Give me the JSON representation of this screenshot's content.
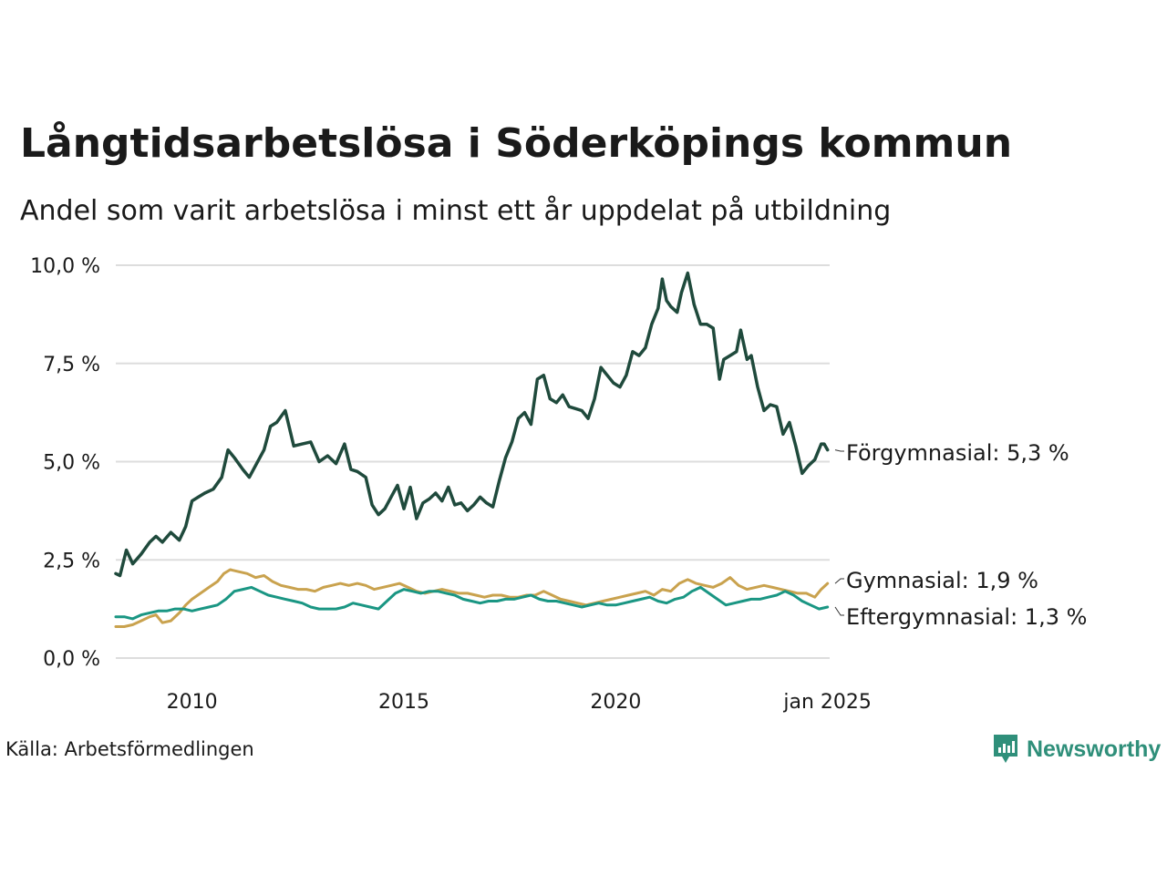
{
  "title": "Långtidsarbetslösa i Söderköpings kommun",
  "subtitle": "Andel som varit arbetslösa i minst ett år uppdelat på utbildning",
  "source": "Källa: Arbetsförmedlingen",
  "brand": "Newsworthy",
  "brand_icon": "newsworthy-logo-icon",
  "colors": {
    "forgymnasial": "#1f4a3c",
    "gymnasial": "#c9a24e",
    "eftergymnasial": "#1a9683",
    "grid": "#dddddd",
    "brand": "#2f8f7a"
  },
  "chart_data": {
    "type": "line",
    "title": "Långtidsarbetslösa i Söderköpings kommun",
    "subtitle": "Andel som varit arbetslösa i minst ett år uppdelat på utbildning",
    "xlabel": "",
    "ylabel": "",
    "xlim": [
      2008.2,
      2025.05
    ],
    "ylim": [
      0,
      10
    ],
    "x_ticks": [
      2010,
      2015,
      2020,
      2025
    ],
    "x_tick_labels": [
      "2010",
      "2015",
      "2020",
      "jan 2025"
    ],
    "y_ticks": [
      0,
      2.5,
      5,
      7.5,
      10
    ],
    "y_tick_labels": [
      "0,0 %",
      "2,5 %",
      "5,0 %",
      "7,5 %",
      "10,0 %"
    ],
    "grid": true,
    "series": [
      {
        "name": "Förgymnasial",
        "end_label": "Förgymnasial: 5,3 %",
        "x": [
          2008.2,
          2008.3,
          2008.45,
          2008.6,
          2008.8,
          2009.0,
          2009.15,
          2009.3,
          2009.5,
          2009.7,
          2009.85,
          2010.0,
          2010.15,
          2010.3,
          2010.5,
          2010.7,
          2010.85,
          2011.0,
          2011.2,
          2011.35,
          2011.5,
          2011.7,
          2011.85,
          2012.0,
          2012.2,
          2012.4,
          2012.6,
          2012.8,
          2013.0,
          2013.2,
          2013.4,
          2013.6,
          2013.75,
          2013.9,
          2014.1,
          2014.25,
          2014.4,
          2014.55,
          2014.7,
          2014.85,
          2015.0,
          2015.15,
          2015.3,
          2015.45,
          2015.6,
          2015.75,
          2015.9,
          2016.05,
          2016.2,
          2016.35,
          2016.5,
          2016.65,
          2016.8,
          2016.95,
          2017.1,
          2017.25,
          2017.4,
          2017.55,
          2017.7,
          2017.85,
          2018.0,
          2018.15,
          2018.3,
          2018.45,
          2018.6,
          2018.75,
          2018.9,
          2019.05,
          2019.2,
          2019.35,
          2019.5,
          2019.65,
          2019.8,
          2019.95,
          2020.1,
          2020.25,
          2020.4,
          2020.55,
          2020.7,
          2020.85,
          2021.0,
          2021.1,
          2021.2,
          2021.3,
          2021.45,
          2021.55,
          2021.7,
          2021.85,
          2022.0,
          2022.15,
          2022.3,
          2022.45,
          2022.55,
          2022.7,
          2022.85,
          2022.95,
          2023.1,
          2023.2,
          2023.35,
          2023.5,
          2023.65,
          2023.8,
          2023.95,
          2024.1,
          2024.25,
          2024.4,
          2024.55,
          2024.7,
          2024.85,
          2024.92,
          2025.0
        ],
        "values": [
          2.15,
          2.1,
          2.75,
          2.4,
          2.65,
          2.95,
          3.1,
          2.95,
          3.2,
          3.0,
          3.35,
          4.0,
          4.1,
          4.2,
          4.3,
          4.6,
          5.3,
          5.1,
          4.8,
          4.6,
          4.9,
          5.3,
          5.9,
          6.0,
          6.3,
          5.4,
          5.45,
          5.5,
          5.0,
          5.15,
          4.95,
          5.45,
          4.8,
          4.75,
          4.6,
          3.9,
          3.65,
          3.8,
          4.1,
          4.4,
          3.8,
          4.35,
          3.55,
          3.95,
          4.05,
          4.2,
          4.0,
          4.35,
          3.9,
          3.95,
          3.75,
          3.9,
          4.1,
          3.95,
          3.85,
          4.5,
          5.1,
          5.5,
          6.1,
          6.25,
          5.95,
          7.1,
          7.2,
          6.6,
          6.5,
          6.7,
          6.4,
          6.35,
          6.3,
          6.1,
          6.6,
          7.4,
          7.2,
          7.0,
          6.9,
          7.2,
          7.8,
          7.7,
          7.9,
          8.5,
          8.9,
          9.65,
          9.1,
          8.95,
          8.8,
          9.3,
          9.8,
          9.0,
          8.5,
          8.5,
          8.4,
          7.1,
          7.6,
          7.7,
          7.8,
          8.35,
          7.6,
          7.7,
          6.9,
          6.3,
          6.45,
          6.4,
          5.7,
          6.0,
          5.4,
          4.7,
          4.9,
          5.05,
          5.45,
          5.45,
          5.3
        ]
      },
      {
        "name": "Gymnasial",
        "end_label": "Gymnasial: 1,9 %",
        "x": [
          2008.2,
          2008.4,
          2008.6,
          2008.8,
          2009.0,
          2009.15,
          2009.3,
          2009.5,
          2009.7,
          2009.85,
          2010.0,
          2010.2,
          2010.4,
          2010.6,
          2010.75,
          2010.9,
          2011.1,
          2011.3,
          2011.5,
          2011.7,
          2011.9,
          2012.1,
          2012.3,
          2012.5,
          2012.7,
          2012.9,
          2013.1,
          2013.3,
          2013.5,
          2013.7,
          2013.9,
          2014.1,
          2014.3,
          2014.5,
          2014.7,
          2014.9,
          2015.1,
          2015.3,
          2015.5,
          2015.7,
          2015.9,
          2016.1,
          2016.3,
          2016.5,
          2016.7,
          2016.9,
          2017.1,
          2017.3,
          2017.5,
          2017.7,
          2017.9,
          2018.1,
          2018.3,
          2018.5,
          2018.7,
          2018.9,
          2019.1,
          2019.3,
          2019.5,
          2019.7,
          2019.9,
          2020.1,
          2020.3,
          2020.5,
          2020.7,
          2020.9,
          2021.1,
          2021.3,
          2021.5,
          2021.7,
          2021.9,
          2022.1,
          2022.3,
          2022.5,
          2022.7,
          2022.9,
          2023.1,
          2023.3,
          2023.5,
          2023.7,
          2023.9,
          2024.1,
          2024.3,
          2024.5,
          2024.7,
          2024.85,
          2025.0
        ],
        "values": [
          0.8,
          0.8,
          0.85,
          0.95,
          1.05,
          1.1,
          0.9,
          0.95,
          1.15,
          1.35,
          1.5,
          1.65,
          1.8,
          1.95,
          2.15,
          2.25,
          2.2,
          2.15,
          2.05,
          2.1,
          1.95,
          1.85,
          1.8,
          1.75,
          1.75,
          1.7,
          1.8,
          1.85,
          1.9,
          1.85,
          1.9,
          1.85,
          1.75,
          1.8,
          1.85,
          1.9,
          1.8,
          1.7,
          1.65,
          1.7,
          1.75,
          1.7,
          1.65,
          1.65,
          1.6,
          1.55,
          1.6,
          1.6,
          1.55,
          1.55,
          1.6,
          1.6,
          1.7,
          1.6,
          1.5,
          1.45,
          1.4,
          1.35,
          1.4,
          1.45,
          1.5,
          1.55,
          1.6,
          1.65,
          1.7,
          1.6,
          1.75,
          1.7,
          1.9,
          2.0,
          1.9,
          1.85,
          1.8,
          1.9,
          2.05,
          1.85,
          1.75,
          1.8,
          1.85,
          1.8,
          1.75,
          1.7,
          1.65,
          1.65,
          1.55,
          1.75,
          1.9
        ]
      },
      {
        "name": "Eftergymnasial",
        "end_label": "Eftergymnasial: 1,3 %",
        "x": [
          2008.2,
          2008.4,
          2008.6,
          2008.8,
          2009.0,
          2009.2,
          2009.4,
          2009.6,
          2009.8,
          2010.0,
          2010.2,
          2010.4,
          2010.6,
          2010.8,
          2011.0,
          2011.2,
          2011.4,
          2011.6,
          2011.8,
          2012.0,
          2012.2,
          2012.4,
          2012.6,
          2012.8,
          2013.0,
          2013.2,
          2013.4,
          2013.6,
          2013.8,
          2014.0,
          2014.2,
          2014.4,
          2014.6,
          2014.8,
          2015.0,
          2015.2,
          2015.4,
          2015.6,
          2015.8,
          2016.0,
          2016.2,
          2016.4,
          2016.6,
          2016.8,
          2017.0,
          2017.2,
          2017.4,
          2017.6,
          2017.8,
          2018.0,
          2018.2,
          2018.4,
          2018.6,
          2018.8,
          2019.0,
          2019.2,
          2019.4,
          2019.6,
          2019.8,
          2020.0,
          2020.2,
          2020.4,
          2020.6,
          2020.8,
          2021.0,
          2021.2,
          2021.4,
          2021.6,
          2021.8,
          2022.0,
          2022.2,
          2022.4,
          2022.6,
          2022.8,
          2023.0,
          2023.2,
          2023.4,
          2023.6,
          2023.8,
          2024.0,
          2024.2,
          2024.4,
          2024.6,
          2024.8,
          2025.0
        ],
        "values": [
          1.05,
          1.05,
          1.0,
          1.1,
          1.15,
          1.2,
          1.2,
          1.25,
          1.25,
          1.2,
          1.25,
          1.3,
          1.35,
          1.5,
          1.7,
          1.75,
          1.8,
          1.7,
          1.6,
          1.55,
          1.5,
          1.45,
          1.4,
          1.3,
          1.25,
          1.25,
          1.25,
          1.3,
          1.4,
          1.35,
          1.3,
          1.25,
          1.45,
          1.65,
          1.75,
          1.7,
          1.65,
          1.7,
          1.7,
          1.65,
          1.6,
          1.5,
          1.45,
          1.4,
          1.45,
          1.45,
          1.5,
          1.5,
          1.55,
          1.6,
          1.5,
          1.45,
          1.45,
          1.4,
          1.35,
          1.3,
          1.35,
          1.4,
          1.35,
          1.35,
          1.4,
          1.45,
          1.5,
          1.55,
          1.45,
          1.4,
          1.5,
          1.55,
          1.7,
          1.8,
          1.65,
          1.5,
          1.35,
          1.4,
          1.45,
          1.5,
          1.5,
          1.55,
          1.6,
          1.7,
          1.6,
          1.45,
          1.35,
          1.25,
          1.3
        ]
      }
    ]
  }
}
